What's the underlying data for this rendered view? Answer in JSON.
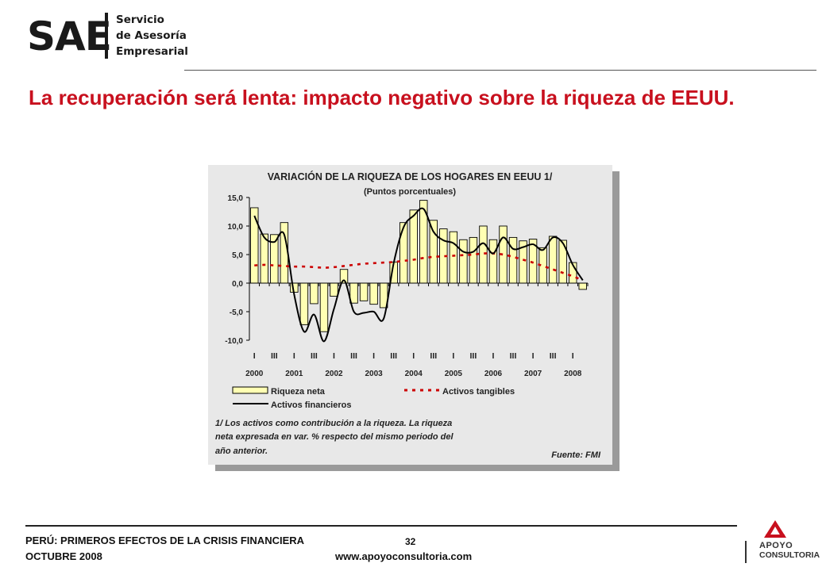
{
  "header": {
    "logo_mark": "SAE",
    "logo_sub": [
      "Servicio",
      "de Asesoría",
      "Empresarial"
    ],
    "title": "La recuperación será lenta: impacto negativo sobre la riqueza de EEUU."
  },
  "chart_data": {
    "type": "bar",
    "title": "VARIACIÓN DE LA RIQUEZA DE LOS HOGARES EN EEUU 1/",
    "subtitle": "(Puntos porcentuales)",
    "ylim": [
      -10,
      15
    ],
    "yticks": [
      15,
      10,
      5,
      0,
      -5,
      -10
    ],
    "ytick_labels": [
      "15,0",
      "10,0",
      "5,0",
      "0,0",
      "-5,0",
      "-10,0"
    ],
    "quarter_labels": [
      "I",
      "III",
      "I",
      "III",
      "I",
      "III",
      "I",
      "III",
      "I",
      "III",
      "I",
      "III",
      "I",
      "III",
      "I",
      "III",
      "I"
    ],
    "year_labels": [
      "2000",
      "2001",
      "2002",
      "2003",
      "2004",
      "2005",
      "2006",
      "2007",
      "2008"
    ],
    "x": [
      "2000 I",
      "2000 II",
      "2000 III",
      "2000 IV",
      "2001 I",
      "2001 II",
      "2001 III",
      "2001 IV",
      "2002 I",
      "2002 II",
      "2002 III",
      "2002 IV",
      "2003 I",
      "2003 II",
      "2003 III",
      "2003 IV",
      "2004 I",
      "2004 II",
      "2004 III",
      "2004 IV",
      "2005 I",
      "2005 II",
      "2005 III",
      "2005 IV",
      "2006 I",
      "2006 II",
      "2006 III",
      "2006 IV",
      "2007 I",
      "2007 II",
      "2007 III",
      "2007 IV",
      "2008 I",
      "2008 II"
    ],
    "series": [
      {
        "name": "Riqueza neta",
        "kind": "bar",
        "color": "#ffffb3",
        "values": [
          13.2,
          8.6,
          8.5,
          10.6,
          -1.6,
          -7.3,
          -3.6,
          -8.5,
          -2.3,
          2.4,
          -3.5,
          -3.1,
          -3.7,
          -4.3,
          3.7,
          10.6,
          12.8,
          14.5,
          11.0,
          9.5,
          9.0,
          7.6,
          8.0,
          10.0,
          7.6,
          10.0,
          8.0,
          7.4,
          7.7,
          6.2,
          8.2,
          7.5,
          3.6,
          -1.1
        ]
      },
      {
        "name": "Activos tangibles",
        "kind": "line",
        "color": "#cc0000",
        "dash": "dashed",
        "values": [
          3.1,
          3.2,
          3.1,
          3.0,
          2.9,
          2.9,
          2.8,
          2.7,
          2.8,
          3.0,
          3.2,
          3.4,
          3.5,
          3.6,
          3.7,
          3.9,
          4.1,
          4.4,
          4.6,
          4.7,
          4.8,
          4.9,
          5.0,
          5.2,
          5.2,
          5.0,
          4.6,
          4.1,
          3.6,
          3.0,
          2.4,
          1.8,
          1.2,
          0.5
        ]
      },
      {
        "name": "Activos financieros",
        "kind": "line",
        "color": "#000000",
        "values": [
          11.8,
          8.0,
          7.2,
          8.5,
          -2.0,
          -8.5,
          -5.5,
          -10.2,
          -4.5,
          0.5,
          -5.0,
          -5.2,
          -5.0,
          -6.2,
          3.5,
          9.8,
          11.8,
          13.0,
          9.0,
          7.5,
          7.0,
          5.5,
          5.5,
          7.0,
          5.2,
          8.0,
          6.0,
          6.3,
          6.8,
          5.8,
          8.0,
          7.0,
          3.2,
          0.5
        ]
      }
    ],
    "legend": [
      "Riqueza neta",
      "Activos tangibles",
      "Activos financieros"
    ],
    "note": [
      "1/ Los activos como contribución  a la riqueza. La riqueza",
      "neta expresada en var. % respecto del mismo periodo del",
      "año anterior."
    ],
    "source": "Fuente: FMI"
  },
  "footer": {
    "line1": "PERÚ: PRIMEROS EFECTOS DE LA CRISIS FINANCIERA",
    "line2": "OCTUBRE 2008",
    "page": "32",
    "url": "www.apoyoconsultoria.com",
    "brand_l1": "APOYO",
    "brand_l2": "CONSULTORIA"
  },
  "colors": {
    "title_red": "#c8101e",
    "bar_fill": "#ffffb3",
    "tangibles": "#cc0000",
    "card_bg": "#e8e8e8"
  }
}
